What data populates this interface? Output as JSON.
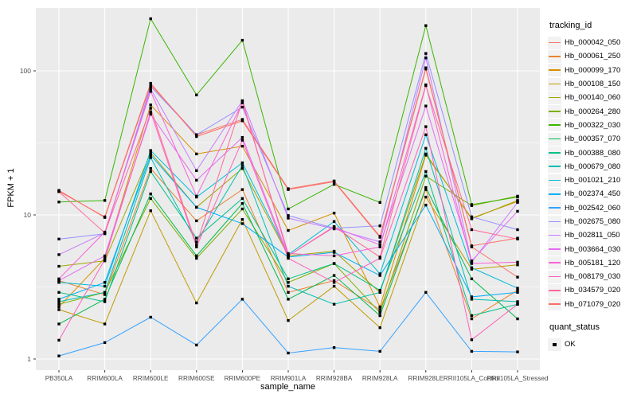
{
  "figure": {
    "background": "#FFFFFF",
    "panel_background": "#EBEBEB",
    "gridline_color": "#FFFFFF",
    "axis_text_color": "#4D4D4D",
    "tick_color": "#333333",
    "marker_color": "#000000"
  },
  "chart_data": {
    "type": "line",
    "title": "",
    "xlabel": "sample_name",
    "ylabel": "FPKM + 1",
    "y_scale": "log10",
    "y_tick_labels": [
      "1",
      "10",
      "100"
    ],
    "y_tick_values": [
      1,
      10,
      100
    ],
    "ylim": [
      0.8,
      280
    ],
    "grid": "white major gridlines on gray panel, minor at half-decades",
    "legend_position": "right",
    "legend_title": "tracking_id",
    "quant_legend_title": "quant_status",
    "quant_status_label": "OK",
    "marker_shape": "filled-square",
    "categories": [
      "PB350LA",
      "RRIM600LA",
      "RRIM600LE",
      "RRIM600SE",
      "RRIM600PE",
      "RRIM901LA",
      "RRIM928BA",
      "RRIM928LA",
      "RRIM928LE",
      "RRII105LA_Control",
      "RRII105LA_Stressed"
    ],
    "series": [
      {
        "name": "Hb_000042_050",
        "color": "#F8766D",
        "values": [
          14.8,
          9.6,
          80,
          36,
          46,
          15.2,
          17.2,
          7.1,
          105,
          6.0,
          3.7
        ]
      },
      {
        "name": "Hb_000061_250",
        "color": "#EA8331",
        "values": [
          3.5,
          2.8,
          21,
          9.1,
          15,
          2.9,
          3.5,
          2.2,
          15,
          1.9,
          3.0
        ]
      },
      {
        "name": "Hb_000099_170",
        "color": "#D89000",
        "values": [
          2.3,
          5.0,
          58,
          26.5,
          30,
          7.8,
          10.3,
          2.3,
          26,
          9.5,
          12.4
        ]
      },
      {
        "name": "Hb_000108_150",
        "color": "#C09B00",
        "values": [
          2.2,
          1.75,
          10.7,
          2.45,
          9.3,
          1.85,
          3.2,
          1.65,
          13.3,
          4.2,
          4.5
        ]
      },
      {
        "name": "Hb_000140_060",
        "color": "#A3A500",
        "values": [
          4.4,
          4.8,
          27,
          11.3,
          21,
          5.2,
          5.6,
          2.9,
          26.5,
          9.4,
          12.6
        ]
      },
      {
        "name": "Hb_000264_280",
        "color": "#7CAE00",
        "values": [
          2.4,
          2.9,
          13,
          5.0,
          11,
          3.4,
          4.6,
          2.1,
          18.6,
          11.6,
          13.5
        ]
      },
      {
        "name": "Hb_000322_030",
        "color": "#39B600",
        "values": [
          12.3,
          12.6,
          230,
          68,
          163,
          11.0,
          16.3,
          12.2,
          206,
          11.8,
          13.3
        ]
      },
      {
        "name": "Hb_000357_070",
        "color": "#00BB4E",
        "values": [
          1.75,
          2.6,
          14,
          5.2,
          12,
          2.6,
          3.8,
          2.0,
          15.5,
          3.6,
          1.9
        ]
      },
      {
        "name": "Hb_000388_080",
        "color": "#00C087",
        "values": [
          2.9,
          2.5,
          20,
          6.9,
          13,
          3.6,
          4.6,
          3.0,
          20,
          2.0,
          2.4
        ]
      },
      {
        "name": "Hb_000679_080",
        "color": "#00C0AF",
        "values": [
          2.5,
          2.9,
          25,
          6.5,
          22,
          3.2,
          2.4,
          2.9,
          29,
          2.6,
          2.5
        ]
      },
      {
        "name": "Hb_001021_210",
        "color": "#00BCD8",
        "values": [
          3.4,
          3.2,
          28,
          13.3,
          23,
          5.3,
          9.0,
          3.9,
          36,
          4.3,
          3.1
        ]
      },
      {
        "name": "Hb_002374_450",
        "color": "#00B0F6",
        "values": [
          2.6,
          3.4,
          26,
          11.3,
          8.7,
          5.1,
          5.5,
          3.8,
          11.7,
          2.7,
          2.9
        ]
      },
      {
        "name": "Hb_002542_060",
        "color": "#35A2FF",
        "values": [
          1.05,
          1.3,
          1.95,
          1.25,
          2.6,
          1.1,
          1.2,
          1.13,
          2.9,
          1.13,
          1.12
        ]
      },
      {
        "name": "Hb_002675_080",
        "color": "#9590FF",
        "values": [
          6.8,
          7.4,
          78,
          36,
          56,
          9.9,
          8.1,
          8.4,
          132,
          9.7,
          7.9
        ]
      },
      {
        "name": "Hb_002811_050",
        "color": "#C77CFF",
        "values": [
          5.3,
          7.5,
          75,
          20.3,
          62,
          9.5,
          8.0,
          6.5,
          123,
          4.7,
          12.2
        ]
      },
      {
        "name": "Hb_003664_030",
        "color": "#E76BF3",
        "values": [
          3.5,
          5.2,
          50,
          17.4,
          34.5,
          5.2,
          8.2,
          6.2,
          57,
          4.8,
          10.6
        ]
      },
      {
        "name": "Hb_005181_120",
        "color": "#FA62DB",
        "values": [
          3.6,
          7.6,
          72,
          13.5,
          60,
          5.4,
          5.2,
          6.0,
          80,
          4.6,
          4.7
        ]
      },
      {
        "name": "Hb_008179_030",
        "color": "#FF62BC",
        "values": [
          1.35,
          4.9,
          52,
          6.0,
          33,
          5.0,
          3.4,
          5.0,
          41,
          1.36,
          2.4
        ]
      },
      {
        "name": "Hb_034579_020",
        "color": "#FF6A98",
        "values": [
          14.5,
          7.5,
          55,
          6.2,
          62,
          5.2,
          8.3,
          5.1,
          79,
          7.9,
          6.8
        ]
      },
      {
        "name": "Hb_071079_020",
        "color": "#FF6C67",
        "values": [
          14.6,
          9.7,
          82,
          35,
          45,
          15.0,
          17.0,
          7.0,
          103,
          6.1,
          6.9
        ]
      }
    ]
  }
}
